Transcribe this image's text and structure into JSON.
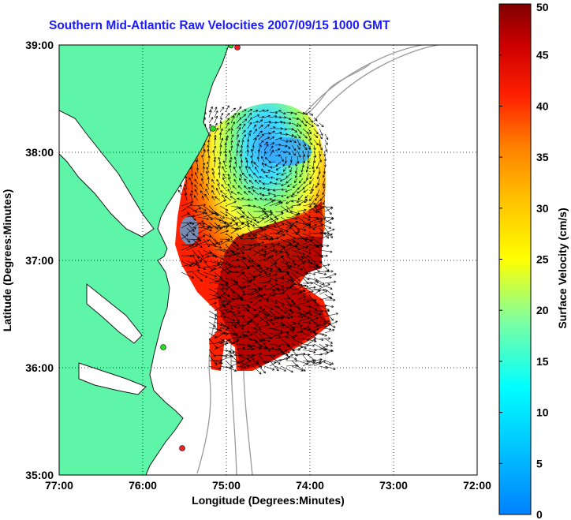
{
  "title": "Southern Mid-Atlantic Raw Velocities 2007/09/15 1000 GMT",
  "x_axis": {
    "label": "Longitude (Degrees:Minutes)",
    "ticks": [
      "77:00",
      "76:00",
      "75:00",
      "74:00",
      "73:00",
      "72:00"
    ]
  },
  "y_axis": {
    "label": "Latitude (Degrees:Minutes)",
    "ticks": [
      "39:00",
      "38:00",
      "37:00",
      "36:00",
      "35:00"
    ]
  },
  "colorbar": {
    "label": "Surface Velocity (cm/s)",
    "ticks": [
      "50",
      "45",
      "40",
      "35",
      "30",
      "25",
      "20",
      "15",
      "10",
      "5",
      "0"
    ],
    "colormap": "jet"
  },
  "colors": {
    "land": "#5ef5a8",
    "land_edge": "#1a1a1a",
    "bathymetry": "#9a9a9a",
    "grid": "#000000",
    "title": "#1a1aff",
    "station_green": "#22dd22",
    "station_red": "#ee2222"
  }
}
